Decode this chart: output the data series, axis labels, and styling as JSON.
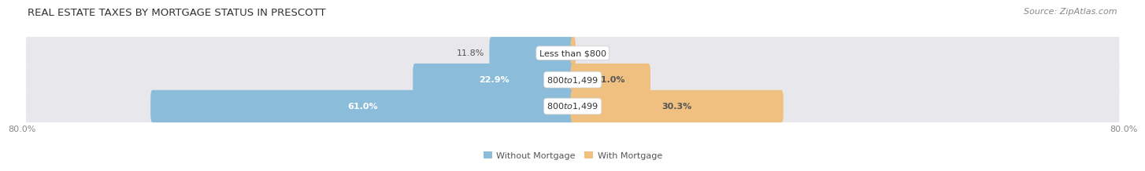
{
  "title": "REAL ESTATE TAXES BY MORTGAGE STATUS IN PRESCOTT",
  "source": "Source: ZipAtlas.com",
  "rows": [
    {
      "label": "Less than $800",
      "without_mortgage": 11.8,
      "with_mortgage": 0.12
    },
    {
      "label": "$800 to $1,499",
      "without_mortgage": 22.9,
      "with_mortgage": 11.0
    },
    {
      "label": "$800 to $1,499",
      "without_mortgage": 61.0,
      "with_mortgage": 30.3
    }
  ],
  "x_min": -80.0,
  "x_max": 80.0,
  "color_without": "#8BBCDA",
  "color_with": "#F0C080",
  "color_row_bg": "#E8E8EC",
  "legend_without": "Without Mortgage",
  "legend_with": "With Mortgage",
  "bar_height": 0.62,
  "row_bg_rounding": 0.4,
  "label_fontsize": 8.0,
  "title_fontsize": 9.5,
  "source_fontsize": 8.0,
  "value_label_color": "#555555",
  "title_color": "#333333",
  "center_label_color": "#333333",
  "tick_label_color": "#888888"
}
